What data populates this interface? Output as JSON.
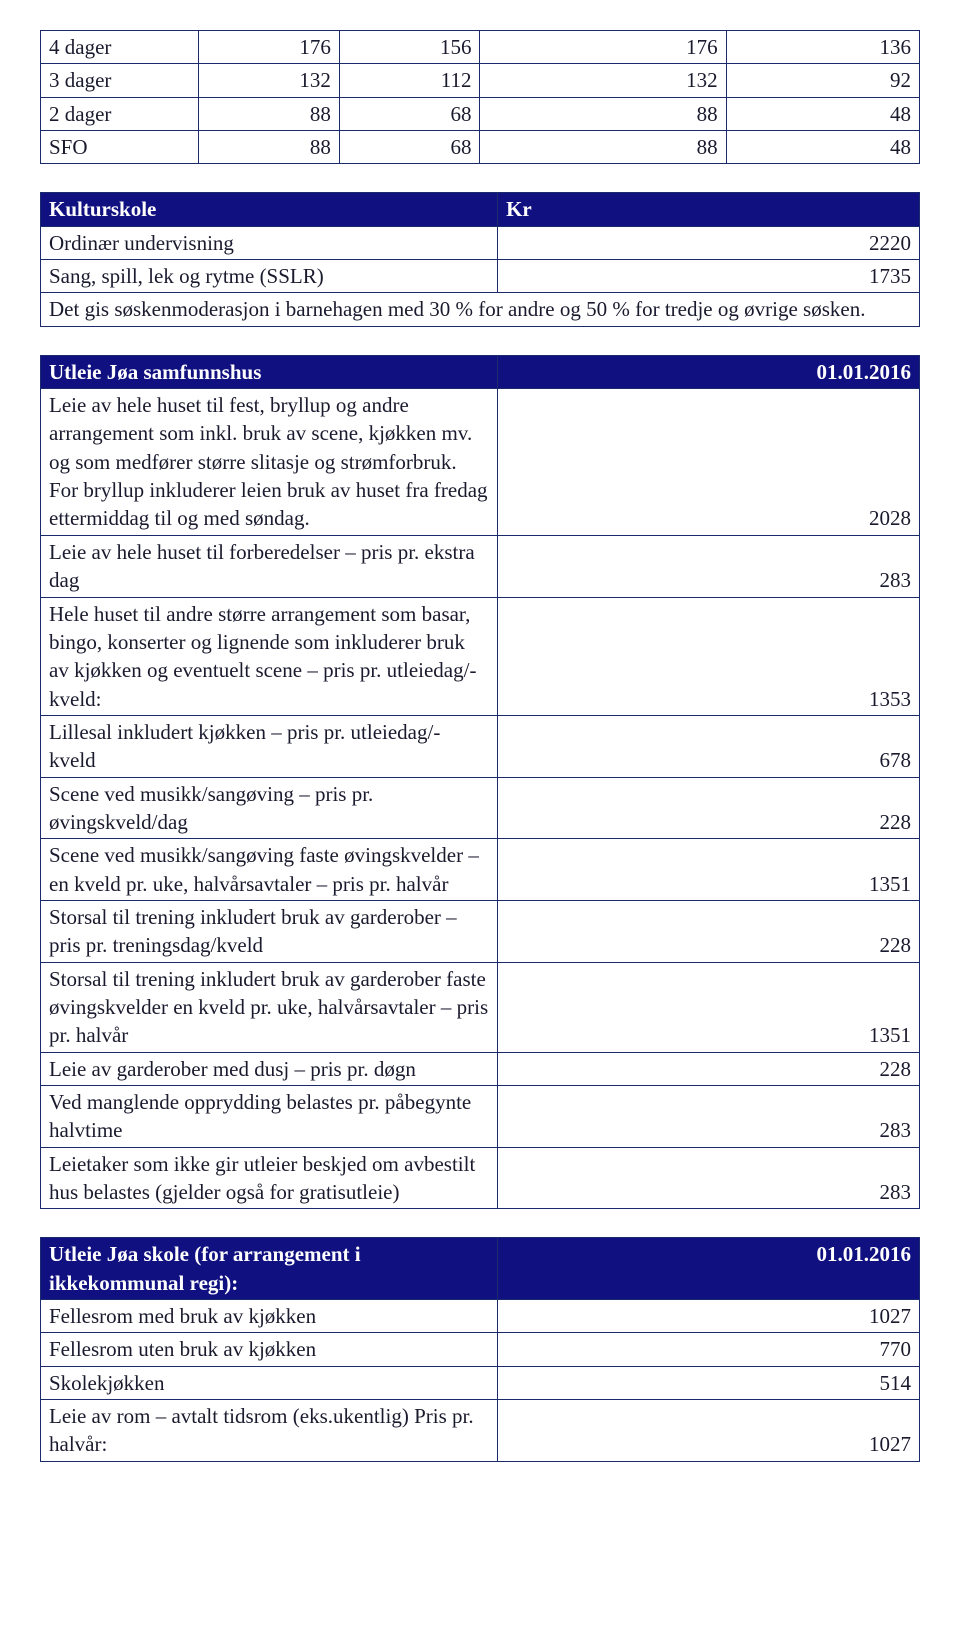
{
  "colors": {
    "header_bg": "#101080",
    "header_text": "#ffffff",
    "border": "#1a2a6c",
    "text": "#1a1a2e",
    "background": "#ffffff"
  },
  "fonts": {
    "family": "Times New Roman",
    "base_size_pt": 16
  },
  "top_table": {
    "rows": [
      {
        "label": "4 dager",
        "c1": "176",
        "c2": "156",
        "c3": "176",
        "c4": "136"
      },
      {
        "label": "3 dager",
        "c1": "132",
        "c2": "112",
        "c3": "132",
        "c4": "92"
      },
      {
        "label": "2 dager",
        "c1": "88",
        "c2": "68",
        "c3": "88",
        "c4": "48"
      },
      {
        "label": "SFO",
        "c1": "88",
        "c2": "68",
        "c3": "88",
        "c4": "48"
      }
    ],
    "col_widths_pct": [
      18,
      16,
      16,
      28,
      22
    ]
  },
  "kulturskole": {
    "hdr_left": "Kulturskole",
    "hdr_right": "Kr",
    "rows": [
      {
        "label": "Ordinær undervisning",
        "value": "2220"
      },
      {
        "label": "Sang, spill, lek og rytme (SSLR)",
        "value": "1735"
      }
    ],
    "note": "Det gis søskenmoderasjon i barnehagen med 30 % for andre og 50 % for tredje og øvrige søsken."
  },
  "samfunnshus": {
    "hdr_left": "Utleie Jøa samfunnshus",
    "hdr_right": "01.01.2016",
    "rows": [
      {
        "label": "Leie av hele huset til fest, bryllup og andre arrangement som inkl. bruk av scene, kjøkken mv. og som medfører større slitasje og strømforbruk. For bryllup inkluderer leien bruk av huset fra fredag ettermiddag til og med søndag.",
        "value": "2028"
      },
      {
        "label": "Leie av hele huset til forberedelser – pris pr. ekstra dag",
        "value": "283"
      },
      {
        "label": "Hele huset til andre større arrangement som basar, bingo, konserter og lignende som inkluderer bruk av kjøkken og eventuelt scene – pris pr. utleiedag/- kveld:",
        "value": "1353"
      },
      {
        "label": "Lillesal inkludert kjøkken – pris pr. utleiedag/- kveld",
        "value": "678"
      },
      {
        "label": "Scene ved musikk/sangøving – pris pr. øvingskveld/dag",
        "value": "228"
      },
      {
        "label": "Scene ved musikk/sangøving faste øvingskvelder – en kveld pr. uke, halvårsavtaler – pris pr. halvår",
        "value": "1351"
      },
      {
        "label": "Storsal til trening inkludert bruk av garderober – pris pr. treningsdag/kveld",
        "value": "228"
      },
      {
        "label": "Storsal til trening inkludert bruk av garderober faste øvingskvelder en kveld pr. uke, halvårsavtaler – pris pr. halvår",
        "value": "1351"
      },
      {
        "label": "Leie av garderober med dusj – pris pr. døgn",
        "value": "228"
      },
      {
        "label": "Ved manglende opprydding belastes pr. påbegynte halvtime",
        "value": "283"
      },
      {
        "label": "Leietaker som ikke gir utleier beskjed om avbestilt hus belastes (gjelder også for gratisutleie)",
        "value": "283"
      }
    ],
    "left_col_width_pct": 52
  },
  "skole": {
    "hdr_left": "Utleie Jøa skole (for arrangement i ikkekommunal regi):",
    "hdr_right": "01.01.2016",
    "rows": [
      {
        "label": "Fellesrom med bruk av kjøkken",
        "value": "1027"
      },
      {
        "label": "Fellesrom uten bruk av kjøkken",
        "value": "770"
      },
      {
        "label": "Skolekjøkken",
        "value": "514"
      },
      {
        "label": "Leie av rom – avtalt tidsrom (eks.ukentlig) Pris pr. halvår:",
        "value": "1027"
      }
    ],
    "left_col_width_pct": 52
  }
}
